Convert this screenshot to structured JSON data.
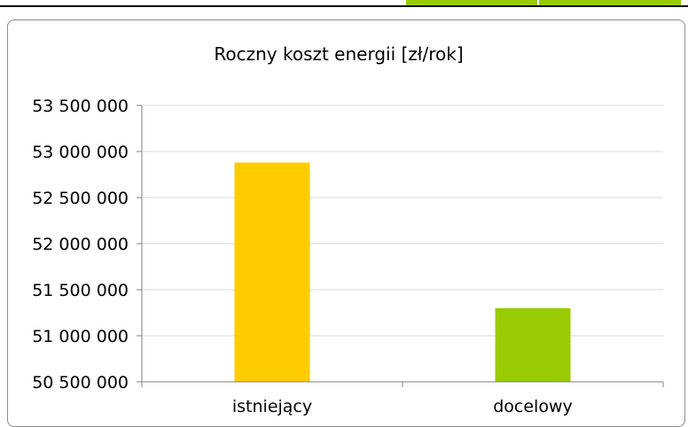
{
  "chart_data": {
    "type": "bar",
    "title": "Roczny koszt energii [zł/rok]",
    "categories": [
      "istniejący",
      "docelowy"
    ],
    "values": [
      52880000,
      51300000
    ],
    "bar_colors": [
      "#ffcc00",
      "#99cc00"
    ],
    "ylim": [
      50500000,
      53500000
    ],
    "yticks": [
      50500000,
      51000000,
      51500000,
      52000000,
      52500000,
      53000000,
      53500000
    ],
    "ytick_labels": [
      "50 500 000",
      "51 000 000",
      "51 500 000",
      "52 000 000",
      "52 500 000",
      "53 000 000",
      "53 500 000"
    ],
    "grid": true,
    "legend": "none",
    "xlabel": "",
    "ylabel": ""
  }
}
